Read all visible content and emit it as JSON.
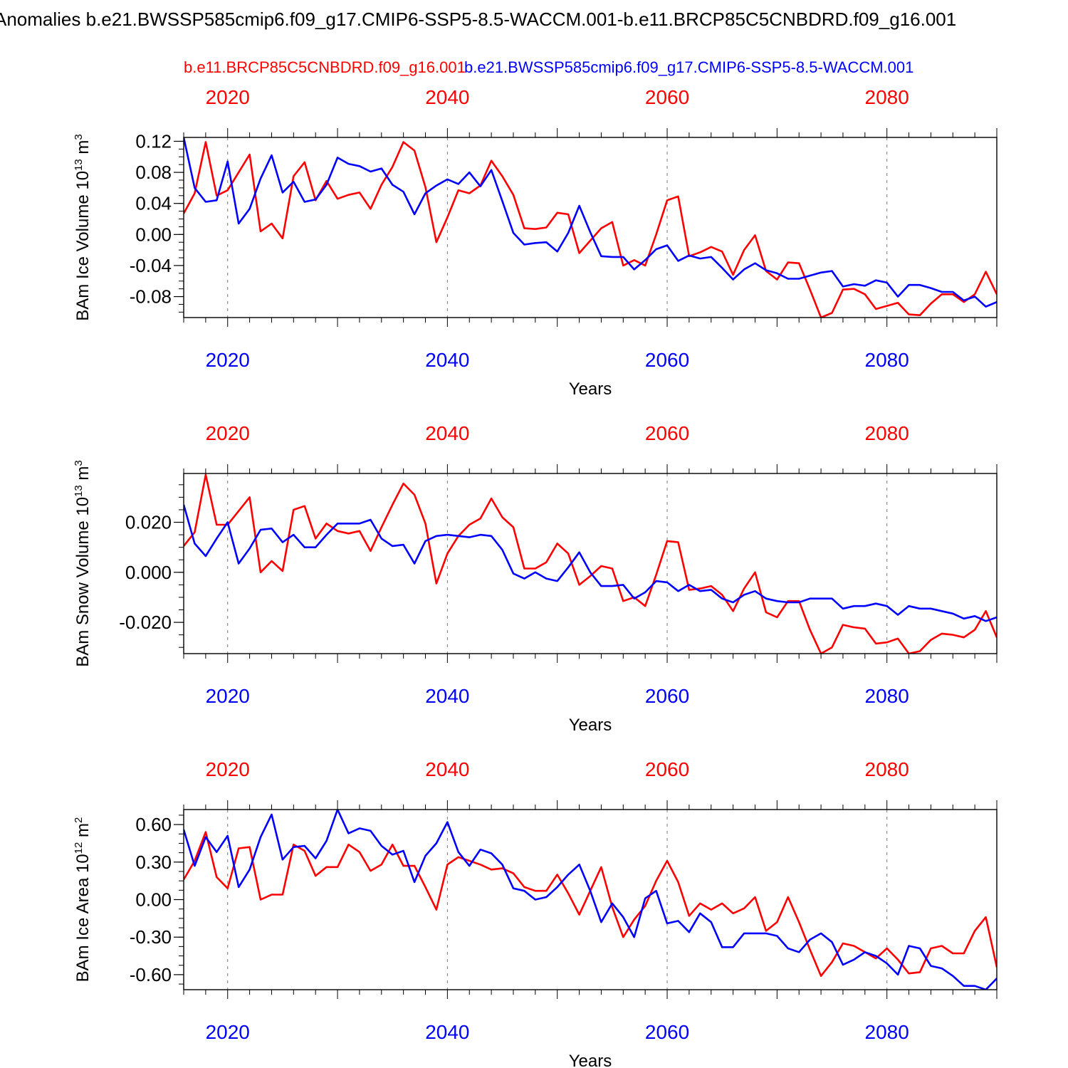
{
  "title": "Anomalies b.e21.BWSSP585cmip6.f09_g17.CMIP6-SSP5-8.5-WACCM.001-b.e11.BRCP85C5CNBDRD.f09_g16.001",
  "colors": {
    "run_a": "#ff0000",
    "run_b": "#0000ff",
    "grid": "#777777"
  },
  "legend": {
    "red_label": "b.e11.BRCP85C5CNBDRD.f09_g16.001",
    "blue_label": "b.e21.BWSSP585cmip6.f09_g17.CMIP6-SSP5-8.5-WACCM.001"
  },
  "chart_data": [
    {
      "type": "line",
      "ylabel_main": "BAm Ice Volume 10",
      "ylabel_exp": "13",
      "ylabel_unit": " m",
      "ylabel_unit_exp": "3",
      "xlabel": "Years",
      "xlim": [
        2016,
        2090
      ],
      "ylim": [
        -0.107,
        0.125
      ],
      "yticks": [
        -0.08,
        -0.04,
        0.0,
        0.04,
        0.08,
        0.12
      ],
      "ytick_labels": [
        "-0.08",
        "-0.04",
        "0.00",
        "0.04",
        "0.08",
        "0.12"
      ],
      "xticks": [
        2020,
        2040,
        2060,
        2080
      ],
      "xtick_labels": [
        "2020",
        "2040",
        "2060",
        "2080"
      ],
      "series": [
        {
          "name": "b.e11.BRCP85C5CNBDRD.f09_g16.001",
          "color": "red",
          "x_start": 2016,
          "values": [
            0.027,
            0.053,
            0.119,
            0.05,
            0.057,
            0.08,
            0.103,
            0.004,
            0.014,
            -0.005,
            0.075,
            0.093,
            0.044,
            0.069,
            0.046,
            0.051,
            0.054,
            0.033,
            0.064,
            0.087,
            0.119,
            0.108,
            0.061,
            -0.01,
            0.022,
            0.057,
            0.053,
            0.063,
            0.095,
            0.075,
            0.051,
            0.008,
            0.007,
            0.009,
            0.028,
            0.026,
            -0.024,
            -0.008,
            0.008,
            0.016,
            -0.04,
            -0.033,
            -0.04,
            0.0,
            0.044,
            0.049,
            -0.028,
            -0.023,
            -0.016,
            -0.022,
            -0.052,
            -0.02,
            -0.001,
            -0.047,
            -0.058,
            -0.036,
            -0.037,
            -0.071,
            -0.107,
            -0.101,
            -0.071,
            -0.07,
            -0.077,
            -0.096,
            -0.092,
            -0.088,
            -0.103,
            -0.104,
            -0.089,
            -0.077,
            -0.077,
            -0.087,
            -0.077,
            -0.048,
            -0.077
          ]
        },
        {
          "name": "b.e21.BWSSP585cmip6.f09_g17.CMIP6-SSP5-8.5-WACCM.001",
          "color": "blue",
          "x_start": 2016,
          "values": [
            0.125,
            0.06,
            0.042,
            0.044,
            0.094,
            0.014,
            0.033,
            0.072,
            0.102,
            0.054,
            0.068,
            0.042,
            0.045,
            0.064,
            0.099,
            0.091,
            0.088,
            0.081,
            0.085,
            0.064,
            0.055,
            0.026,
            0.053,
            0.063,
            0.071,
            0.065,
            0.08,
            0.062,
            0.083,
            0.043,
            0.002,
            -0.013,
            -0.011,
            -0.01,
            -0.022,
            0.002,
            0.037,
            0.003,
            -0.028,
            -0.029,
            -0.029,
            -0.045,
            -0.033,
            -0.019,
            -0.014,
            -0.034,
            -0.027,
            -0.031,
            -0.029,
            -0.043,
            -0.058,
            -0.045,
            -0.037,
            -0.046,
            -0.05,
            -0.057,
            -0.057,
            -0.053,
            -0.049,
            -0.047,
            -0.067,
            -0.064,
            -0.066,
            -0.059,
            -0.062,
            -0.08,
            -0.065,
            -0.065,
            -0.069,
            -0.074,
            -0.074,
            -0.085,
            -0.08,
            -0.093,
            -0.087
          ]
        }
      ]
    },
    {
      "type": "line",
      "ylabel_main": "BAm Snow Volume 10",
      "ylabel_exp": "13",
      "ylabel_unit": " m",
      "ylabel_unit_exp": "3",
      "xlabel": "Years",
      "xlim": [
        2016,
        2090
      ],
      "ylim": [
        -0.0325,
        0.0395
      ],
      "yticks": [
        -0.02,
        0.0,
        0.02
      ],
      "ytick_labels": [
        "-0.020",
        "0.000",
        "0.020"
      ],
      "xticks": [
        2020,
        2040,
        2060,
        2080
      ],
      "xtick_labels": [
        "2020",
        "2040",
        "2060",
        "2080"
      ],
      "series": [
        {
          "name": "b.e11.BRCP85C5CNBDRD.f09_g16.001",
          "color": "red",
          "x_start": 2016,
          "values": [
            0.0105,
            0.016,
            0.039,
            0.019,
            0.019,
            0.0245,
            0.03,
            0.0,
            0.0045,
            0.0005,
            0.025,
            0.0265,
            0.0135,
            0.0195,
            0.0165,
            0.0155,
            0.0165,
            0.0085,
            0.018,
            0.027,
            0.0355,
            0.031,
            0.0195,
            -0.0045,
            0.0075,
            0.0145,
            0.019,
            0.0215,
            0.0295,
            0.022,
            0.018,
            0.0015,
            0.0015,
            0.004,
            0.0115,
            0.0075,
            -0.005,
            -0.0015,
            0.0025,
            0.0015,
            -0.0115,
            -0.01,
            -0.0135,
            -0.001,
            0.0125,
            0.012,
            -0.007,
            -0.0065,
            -0.0055,
            -0.009,
            -0.0155,
            -0.0065,
            0.0,
            -0.016,
            -0.018,
            -0.0115,
            -0.0115,
            -0.023,
            -0.0325,
            -0.03,
            -0.021,
            -0.022,
            -0.0225,
            -0.0285,
            -0.028,
            -0.0265,
            -0.0325,
            -0.0315,
            -0.027,
            -0.0245,
            -0.025,
            -0.026,
            -0.023,
            -0.0155,
            -0.026
          ]
        },
        {
          "name": "b.e21.BWSSP585cmip6.f09_g17.CMIP6-SSP5-8.5-WACCM.001",
          "color": "blue",
          "x_start": 2016,
          "values": [
            0.027,
            0.0115,
            0.0065,
            0.0135,
            0.02,
            0.0035,
            0.0095,
            0.017,
            0.0175,
            0.012,
            0.015,
            0.01,
            0.01,
            0.015,
            0.0195,
            0.0195,
            0.0195,
            0.021,
            0.0135,
            0.0105,
            0.011,
            0.0035,
            0.0125,
            0.0145,
            0.015,
            0.0145,
            0.014,
            0.015,
            0.0145,
            0.009,
            -0.0005,
            -0.0025,
            0.0,
            -0.0025,
            -0.0035,
            0.002,
            0.008,
            0.0,
            -0.0055,
            -0.0055,
            -0.005,
            -0.0105,
            -0.008,
            -0.0035,
            -0.004,
            -0.0075,
            -0.005,
            -0.0075,
            -0.007,
            -0.0105,
            -0.012,
            -0.009,
            -0.0075,
            -0.0105,
            -0.0115,
            -0.012,
            -0.012,
            -0.0105,
            -0.0105,
            -0.0105,
            -0.0145,
            -0.0135,
            -0.0135,
            -0.0125,
            -0.0135,
            -0.017,
            -0.0135,
            -0.0145,
            -0.0145,
            -0.0155,
            -0.0165,
            -0.0185,
            -0.0175,
            -0.0195,
            -0.018
          ]
        }
      ]
    },
    {
      "type": "line",
      "ylabel_main": "BAm Ice Area 10",
      "ylabel_exp": "12",
      "ylabel_unit": " m",
      "ylabel_unit_exp": "2",
      "xlabel": "Years",
      "xlim": [
        2016,
        2090
      ],
      "ylim": [
        -0.72,
        0.72
      ],
      "yticks": [
        -0.6,
        -0.3,
        0.0,
        0.3,
        0.6
      ],
      "ytick_labels": [
        "-0.60",
        "-0.30",
        "0.00",
        "0.30",
        "0.60"
      ],
      "xticks": [
        2020,
        2040,
        2060,
        2080
      ],
      "xtick_labels": [
        "2020",
        "2040",
        "2060",
        "2080"
      ],
      "series": [
        {
          "name": "b.e11.BRCP85C5CNBDRD.f09_g16.001",
          "color": "red",
          "x_start": 2016,
          "values": [
            0.16,
            0.31,
            0.54,
            0.18,
            0.09,
            0.41,
            0.42,
            0.0,
            0.04,
            0.04,
            0.44,
            0.39,
            0.19,
            0.26,
            0.26,
            0.44,
            0.38,
            0.23,
            0.28,
            0.44,
            0.27,
            0.27,
            0.1,
            -0.08,
            0.28,
            0.34,
            0.31,
            0.28,
            0.24,
            0.25,
            0.21,
            0.1,
            0.07,
            0.07,
            0.2,
            0.05,
            -0.12,
            0.07,
            0.26,
            -0.06,
            -0.3,
            -0.16,
            -0.05,
            0.15,
            0.31,
            0.14,
            -0.13,
            -0.03,
            -0.08,
            -0.03,
            -0.11,
            -0.07,
            0.02,
            -0.25,
            -0.18,
            0.02,
            -0.18,
            -0.4,
            -0.61,
            -0.5,
            -0.35,
            -0.37,
            -0.42,
            -0.47,
            -0.39,
            -0.48,
            -0.59,
            -0.58,
            -0.39,
            -0.37,
            -0.43,
            -0.43,
            -0.25,
            -0.14,
            -0.54
          ]
        },
        {
          "name": "b.e21.BWSSP585cmip6.f09_g17.CMIP6-SSP5-8.5-WACCM.001",
          "color": "blue",
          "x_start": 2016,
          "values": [
            0.56,
            0.27,
            0.5,
            0.38,
            0.51,
            0.1,
            0.24,
            0.5,
            0.68,
            0.32,
            0.42,
            0.43,
            0.33,
            0.47,
            0.72,
            0.53,
            0.57,
            0.55,
            0.43,
            0.36,
            0.39,
            0.14,
            0.35,
            0.45,
            0.62,
            0.38,
            0.27,
            0.4,
            0.37,
            0.28,
            0.09,
            0.07,
            0.0,
            0.02,
            0.1,
            0.2,
            0.28,
            0.07,
            -0.18,
            -0.03,
            -0.14,
            -0.3,
            0.01,
            0.07,
            -0.19,
            -0.17,
            -0.26,
            -0.11,
            -0.18,
            -0.38,
            -0.38,
            -0.27,
            -0.27,
            -0.27,
            -0.29,
            -0.39,
            -0.42,
            -0.32,
            -0.27,
            -0.34,
            -0.52,
            -0.48,
            -0.42,
            -0.45,
            -0.51,
            -0.6,
            -0.37,
            -0.39,
            -0.53,
            -0.55,
            -0.61,
            -0.69,
            -0.69,
            -0.72,
            -0.63
          ]
        }
      ]
    }
  ]
}
